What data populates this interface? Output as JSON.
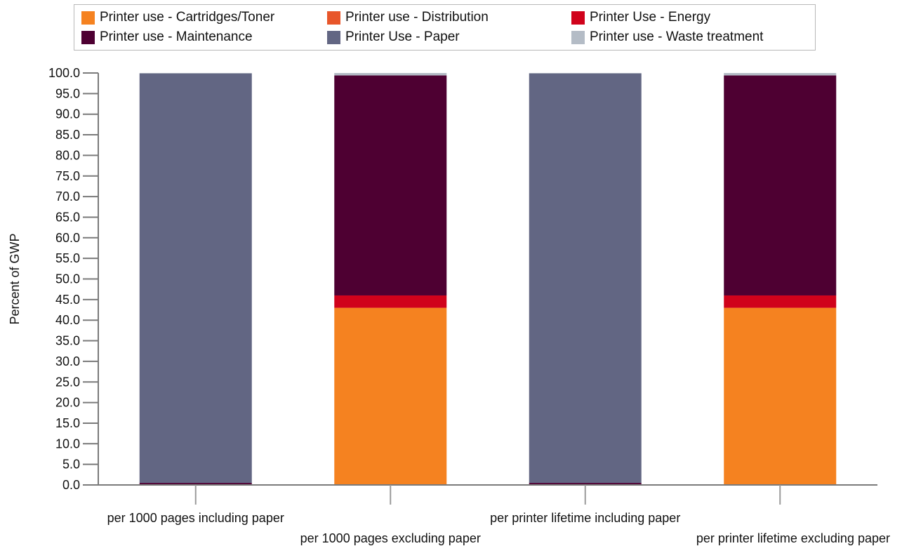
{
  "chart_data": {
    "type": "bar",
    "stacked": true,
    "ylabel": "Percent of GWP",
    "ylim": [
      0,
      100
    ],
    "ytick_step": 5,
    "grid": false,
    "legend_position": "top",
    "categories": [
      "per 1000 pages including paper",
      "per 1000 pages excluding paper",
      "per printer lifetime including paper",
      "per printer lifetime excluding paper"
    ],
    "series": [
      {
        "name": "Printer use - Cartridges/Toner",
        "color": "#f58220",
        "values": [
          0.0,
          43.0,
          0.0,
          43.0
        ]
      },
      {
        "name": "Printer use - Distribution",
        "color": "#e8562a",
        "values": [
          0.0,
          0.0,
          0.0,
          0.0
        ]
      },
      {
        "name": "Printer Use - Energy",
        "color": "#d0021b",
        "values": [
          0.1,
          3.0,
          0.1,
          3.0
        ]
      },
      {
        "name": "Printer use - Maintenance",
        "color": "#4e0032",
        "values": [
          0.4,
          53.4,
          0.4,
          53.4
        ]
      },
      {
        "name": "Printer Use - Paper",
        "color": "#626683",
        "values": [
          99.4,
          0.0,
          99.4,
          0.0
        ]
      },
      {
        "name": "Printer use - Waste treatment",
        "color": "#b4bcc6",
        "values": [
          0.1,
          0.6,
          0.1,
          0.6
        ]
      }
    ]
  }
}
